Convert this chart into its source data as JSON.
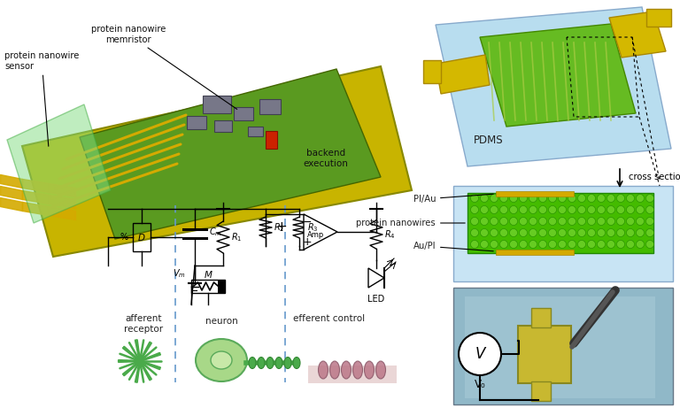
{
  "colors": {
    "bg_color": "#ffffff",
    "pcb_yellow": "#c8b400",
    "pcb_green": "#6aaa00",
    "pcb_dark": "#888800",
    "blue_pdms": "#b8ddef",
    "blue_light": "#c8e4f4",
    "neuron_green": "#90c878",
    "circuit_black": "#000000",
    "dashed_blue": "#6699cc",
    "text_dark": "#222222",
    "cross_green": "#44bb00",
    "gold": "#d4aa00",
    "photo_bg": "#90b8c8"
  },
  "labels": {
    "protein_nanowire_sensor": "protein nanowire\nsensor",
    "protein_nanowire_memristor": "protein nanowire\nmemristor",
    "backend_execution": "backend\nexecution",
    "afferent_receptor": "afferent\nreceptor",
    "neuron": "neuron",
    "efferent_control": "efferent control",
    "PDMS": "PDMS",
    "cross_section": "cross section",
    "PI_Au": "PI/Au",
    "protein_nanowires": "protein nanowires",
    "Au_PI": "Au/PI",
    "Amp": "Amp",
    "LED": "LED",
    "V0": "V₀"
  }
}
